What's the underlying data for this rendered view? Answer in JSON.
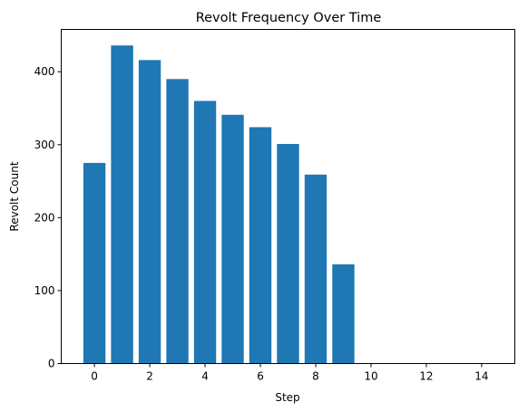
{
  "chart_data": {
    "type": "bar",
    "title": "Revolt Frequency Over Time",
    "xlabel": "Step",
    "ylabel": "Revolt Count",
    "x": [
      0,
      1,
      2,
      3,
      4,
      5,
      6,
      7,
      8,
      9,
      10,
      11,
      12,
      13,
      14
    ],
    "values": [
      275,
      436,
      416,
      390,
      360,
      341,
      324,
      301,
      259,
      136,
      0,
      0,
      0,
      0,
      0
    ],
    "xlim": [
      -1.2,
      15.2
    ],
    "ylim": [
      0,
      458
    ],
    "xticks": [
      0,
      2,
      4,
      6,
      8,
      10,
      12,
      14
    ],
    "yticks": [
      0,
      100,
      200,
      300,
      400
    ],
    "bar_color": "#1f77b4",
    "grid": false,
    "legend": "none"
  }
}
